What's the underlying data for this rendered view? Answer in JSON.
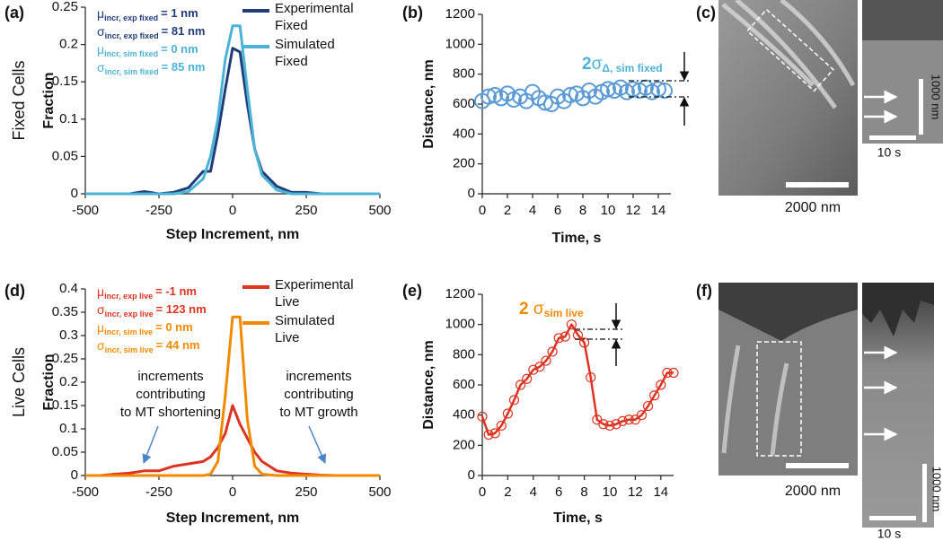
{
  "chart_data": [
    {
      "type": "line",
      "panel": "(a)",
      "row_label": "Fixed Cells",
      "ylabel": "Fraction",
      "xlabel": "Step Increment, nm",
      "x": [
        -500,
        -450,
        -400,
        -350,
        -300,
        -250,
        -200,
        -150,
        -100,
        -75,
        -50,
        -25,
        0,
        25,
        50,
        75,
        100,
        150,
        200,
        250,
        300,
        350,
        400,
        450,
        500
      ],
      "xlim": [
        -500,
        500
      ],
      "xticks": [
        -500,
        -250,
        0,
        250,
        500
      ],
      "ylim": [
        0,
        0.25
      ],
      "yticks": [
        0,
        0.05,
        0.1,
        0.15,
        0.2,
        0.25
      ],
      "series": [
        {
          "name": "Experimental Fixed",
          "color": "#1f3d7a",
          "values": [
            0,
            0,
            0,
            0,
            0.003,
            0,
            0.002,
            0.008,
            0.03,
            0.03,
            0.08,
            0.14,
            0.195,
            0.19,
            0.12,
            0.06,
            0.03,
            0.01,
            0.002,
            0.002,
            0,
            0,
            0,
            0,
            0
          ]
        },
        {
          "name": "Simulated Fixed",
          "color": "#4bb3d6",
          "values": [
            0,
            0,
            0,
            0,
            0,
            0,
            0,
            0.003,
            0.02,
            0.05,
            0.1,
            0.18,
            0.225,
            0.225,
            0.14,
            0.06,
            0.025,
            0.005,
            0,
            0,
            0,
            0,
            0,
            0,
            0
          ]
        }
      ],
      "stats": [
        {
          "symbol": "μ",
          "sub": "incr, exp fixed",
          "text": "= 1 nm",
          "color": "#1f3d7a"
        },
        {
          "symbol": "σ",
          "sub": "incr, exp fixed",
          "text": "= 81 nm",
          "color": "#1f3d7a"
        },
        {
          "symbol": "μ",
          "sub": "incr, sim fixed",
          "text": "= 0 nm",
          "color": "#4bb3d6"
        },
        {
          "symbol": "σ",
          "sub": "incr, sim fixed",
          "text": "= 85 nm",
          "color": "#4bb3d6"
        }
      ]
    },
    {
      "type": "scatter",
      "panel": "(b)",
      "ylabel": "Distance, nm",
      "xlabel": "Time, s",
      "x": [
        0,
        0.5,
        1,
        1.5,
        2,
        2.5,
        3,
        3.5,
        4,
        4.5,
        5,
        5.5,
        6,
        6.5,
        7,
        7.5,
        8,
        8.5,
        9,
        9.5,
        10,
        10.5,
        11,
        11.5,
        12,
        12.5,
        13,
        13.5,
        14,
        14.5
      ],
      "xlim": [
        0,
        15
      ],
      "xticks": [
        0,
        2,
        4,
        6,
        8,
        10,
        12,
        14
      ],
      "ylim": [
        0,
        1200
      ],
      "yticks": [
        0,
        200,
        400,
        600,
        800,
        1000,
        1200
      ],
      "series": [
        {
          "color": "#5b9bd5",
          "values": [
            620,
            650,
            660,
            640,
            670,
            630,
            650,
            620,
            680,
            640,
            610,
            600,
            650,
            620,
            660,
            670,
            640,
            690,
            650,
            680,
            700,
            690,
            710,
            680,
            700,
            690,
            710,
            680,
            700,
            690
          ]
        }
      ],
      "sigma": {
        "text": "2",
        "symbol": "σ",
        "sub": "Δ, sim fixed",
        "color": "#4bb3d6"
      }
    },
    {
      "type": "line",
      "panel": "(d)",
      "row_label": "Live Cells",
      "ylabel": "Fraction",
      "xlabel": "Step Increment, nm",
      "x": [
        -500,
        -450,
        -400,
        -350,
        -300,
        -250,
        -200,
        -150,
        -100,
        -75,
        -50,
        -25,
        0,
        25,
        50,
        75,
        100,
        150,
        200,
        250,
        300,
        350,
        400,
        450,
        500
      ],
      "xlim": [
        -500,
        500
      ],
      "xticks": [
        -500,
        -250,
        0,
        250,
        500
      ],
      "ylim": [
        0,
        0.4
      ],
      "yticks": [
        0,
        0.05,
        0.1,
        0.15,
        0.2,
        0.25,
        0.3,
        0.35,
        0.4
      ],
      "series": [
        {
          "name": "Experimental Live",
          "color": "#dd3322",
          "values": [
            0,
            0,
            0.003,
            0.005,
            0.01,
            0.01,
            0.02,
            0.025,
            0.03,
            0.04,
            0.06,
            0.09,
            0.15,
            0.11,
            0.08,
            0.05,
            0.03,
            0.01,
            0.005,
            0.003,
            0.001,
            0,
            0,
            0,
            0
          ]
        },
        {
          "name": "Simulated Live",
          "color": "#f08a00",
          "values": [
            0,
            0,
            0,
            0,
            0,
            0,
            0,
            0,
            0,
            0.003,
            0.03,
            0.17,
            0.34,
            0.34,
            0.12,
            0.02,
            0.003,
            0,
            0,
            0,
            0,
            0,
            0,
            0,
            0
          ]
        }
      ],
      "stats": [
        {
          "symbol": "μ",
          "sub": "incr, exp live",
          "text": "= -1 nm",
          "color": "#dd3322"
        },
        {
          "symbol": "σ",
          "sub": "incr, exp live",
          "text": "= 123 nm",
          "color": "#dd3322"
        },
        {
          "symbol": "μ",
          "sub": "incr, sim live",
          "text": "= 0 nm",
          "color": "#f08a00"
        },
        {
          "symbol": "σ",
          "sub": "incr, sim live",
          "text": "= 44 nm",
          "color": "#f08a00"
        }
      ],
      "notes": [
        {
          "lines": [
            "increments",
            "contributing",
            "to MT shortening"
          ]
        },
        {
          "lines": [
            "increments",
            "contributing",
            "to MT growth"
          ]
        }
      ]
    },
    {
      "type": "line",
      "panel": "(e)",
      "ylabel": "Distance, nm",
      "xlabel": "Time, s",
      "markers": true,
      "x": [
        0,
        0.5,
        1,
        1.5,
        2,
        2.5,
        3,
        3.5,
        4,
        4.5,
        5,
        5.5,
        6,
        6.5,
        7,
        7.5,
        8,
        8.5,
        9,
        9.5,
        10,
        10.5,
        11,
        11.5,
        12,
        12.5,
        13,
        13.5,
        14,
        14.5,
        15
      ],
      "xlim": [
        0,
        15
      ],
      "xticks": [
        0,
        2,
        4,
        6,
        8,
        10,
        12,
        14
      ],
      "ylim": [
        0,
        1200
      ],
      "yticks": [
        0,
        200,
        400,
        600,
        800,
        1000,
        1200
      ],
      "series": [
        {
          "color": "#dd3322",
          "values": [
            390,
            270,
            280,
            330,
            410,
            500,
            600,
            640,
            700,
            720,
            760,
            820,
            910,
            920,
            1000,
            930,
            880,
            650,
            370,
            340,
            330,
            340,
            360,
            370,
            370,
            400,
            460,
            530,
            600,
            680,
            680
          ]
        }
      ],
      "sigma": {
        "text": "2 ",
        "symbol": "σ",
        "sub": "sim live",
        "color": "#f08a00"
      }
    }
  ],
  "images": [
    {
      "panel": "(c)",
      "scale_label": "2000 nm",
      "kymo_space_label": "1000 nm",
      "kymo_time_label": "10 s"
    },
    {
      "panel": "(f)",
      "scale_label": "2000 nm",
      "kymo_space_label": "1000 nm",
      "kymo_time_label": "10 s"
    }
  ]
}
